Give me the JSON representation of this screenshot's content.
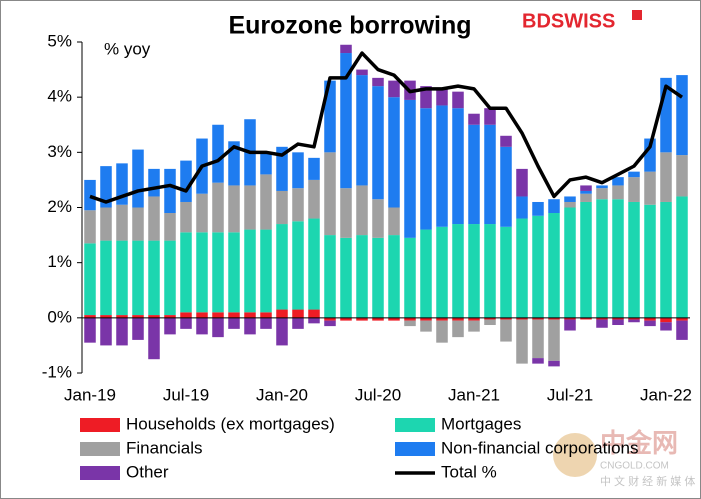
{
  "chart_data": {
    "type": "stacked_bar_line",
    "title": "Eurozone borrowing",
    "annotation": "% yoy",
    "logo": "BDSWISS",
    "watermark": [
      "中金网",
      "CNGOLD.COM",
      "中 文 财 经 新 媒 体"
    ],
    "categories": [
      "Jan-19",
      null,
      null,
      null,
      null,
      null,
      "Jul-19",
      null,
      null,
      null,
      null,
      null,
      "Jan-20",
      null,
      null,
      null,
      null,
      null,
      "Jul-20",
      null,
      null,
      null,
      null,
      null,
      "Jan-21",
      null,
      null,
      null,
      null,
      null,
      "Jul-21",
      null,
      null,
      null,
      null,
      null,
      "Jan-22",
      null
    ],
    "ylim": [
      -1,
      5
    ],
    "yticks": [
      {
        "value": -1,
        "label": "-1%"
      },
      {
        "value": 0,
        "label": "0%"
      },
      {
        "value": 1,
        "label": "1%"
      },
      {
        "value": 2,
        "label": "2%"
      },
      {
        "value": 3,
        "label": "3%"
      },
      {
        "value": 4,
        "label": "4%"
      },
      {
        "value": 5,
        "label": "5%"
      }
    ],
    "series": [
      {
        "name": "Households (ex mortgages)",
        "color": "#ee1c25",
        "kind": "bar",
        "values": [
          0.05,
          0.05,
          0.05,
          0.05,
          0.05,
          0.05,
          0.1,
          0.1,
          0.1,
          0.1,
          0.1,
          0.1,
          0.15,
          0.15,
          0.15,
          -0.05,
          -0.05,
          -0.05,
          -0.05,
          -0.05,
          -0.05,
          -0.05,
          -0.05,
          -0.05,
          -0.05,
          -0.03,
          -0.03,
          -0.03,
          -0.03,
          -0.03,
          -0.03,
          -0.03,
          -0.03,
          -0.03,
          -0.03,
          -0.05,
          -0.08,
          -0.05
        ]
      },
      {
        "name": "Mortgages",
        "color": "#1dd6b0",
        "kind": "bar",
        "values": [
          1.3,
          1.35,
          1.35,
          1.35,
          1.35,
          1.35,
          1.45,
          1.45,
          1.45,
          1.45,
          1.5,
          1.5,
          1.55,
          1.6,
          1.65,
          1.5,
          1.45,
          1.5,
          1.45,
          1.5,
          1.45,
          1.6,
          1.65,
          1.7,
          1.7,
          1.7,
          1.65,
          1.8,
          1.85,
          1.9,
          2.0,
          2.1,
          2.15,
          2.15,
          2.1,
          2.05,
          2.1,
          2.2
        ]
      },
      {
        "name": "Financials",
        "color": "#a0a0a0",
        "kind": "bar",
        "values": [
          0.6,
          0.6,
          0.65,
          0.6,
          0.8,
          0.5,
          0.55,
          0.7,
          0.9,
          0.85,
          0.8,
          1.0,
          0.6,
          0.6,
          0.7,
          1.5,
          0.9,
          0.9,
          0.7,
          0.5,
          -0.1,
          -0.2,
          -0.4,
          -0.3,
          -0.2,
          -0.1,
          -0.4,
          -0.8,
          -0.7,
          -0.75,
          0.1,
          0.15,
          0.2,
          0.25,
          0.45,
          0.6,
          0.9,
          0.75
        ]
      },
      {
        "name": "Non-financial corporations",
        "color": "#1e7cf0",
        "kind": "bar",
        "values": [
          0.55,
          0.75,
          0.75,
          1.05,
          0.5,
          0.8,
          0.75,
          1.0,
          1.05,
          0.8,
          1.2,
          0.4,
          0.8,
          0.65,
          0.4,
          1.3,
          2.45,
          2.0,
          2.05,
          2.0,
          2.5,
          2.2,
          2.2,
          2.1,
          1.8,
          1.8,
          1.45,
          0.4,
          0.25,
          0.25,
          0.1,
          0.05,
          0.05,
          0.15,
          0.1,
          0.6,
          1.35,
          1.45
        ]
      },
      {
        "name": "Other",
        "color": "#7a35a8",
        "kind": "bar",
        "values": [
          -0.45,
          -0.5,
          -0.5,
          -0.4,
          -0.75,
          -0.3,
          -0.2,
          -0.3,
          -0.35,
          -0.2,
          -0.3,
          -0.2,
          -0.5,
          -0.2,
          -0.1,
          -0.1,
          0.15,
          0.1,
          0.15,
          0.3,
          0.35,
          0.4,
          0.3,
          0.3,
          0.2,
          0.3,
          0.2,
          0.5,
          -0.1,
          -0.1,
          -0.2,
          0.1,
          -0.15,
          -0.1,
          -0.05,
          -0.1,
          -0.15,
          -0.35
        ]
      },
      {
        "name": "Total %",
        "color": "#000000",
        "kind": "line",
        "values": [
          2.2,
          2.1,
          2.2,
          2.3,
          2.35,
          2.4,
          2.3,
          2.75,
          2.85,
          3.1,
          3.0,
          3.0,
          2.95,
          3.15,
          3.1,
          4.35,
          4.35,
          4.8,
          4.5,
          4.4,
          4.1,
          4.15,
          4.15,
          4.2,
          4.15,
          3.8,
          3.8,
          3.35,
          2.75,
          2.2,
          2.5,
          2.55,
          2.45,
          2.6,
          2.75,
          3.1,
          4.2,
          4.0
        ]
      }
    ]
  }
}
